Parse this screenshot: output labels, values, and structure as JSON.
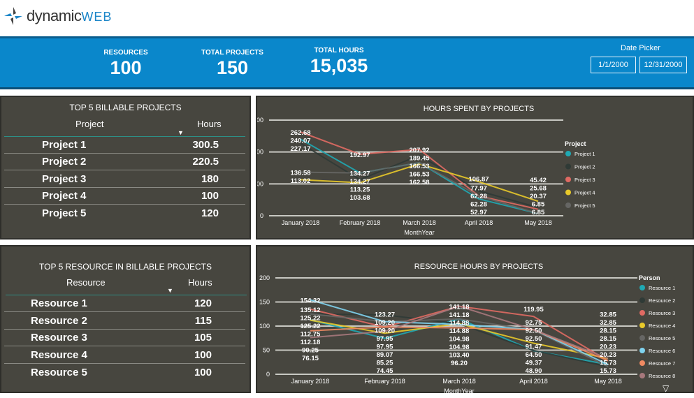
{
  "logo": {
    "text_main": "dynamic",
    "text_accent": "WEB"
  },
  "kpis": [
    {
      "label": "RESOURCES",
      "value": "100"
    },
    {
      "label": "TOTAL PROJECTS",
      "value": "150"
    },
    {
      "label": "TOTAL HOURS",
      "value": "15,035"
    }
  ],
  "date_picker": {
    "label": "Date Picker",
    "start": "1/1/2000",
    "end": "12/31/2000"
  },
  "projects_table": {
    "title": "TOP 5 BILLABLE PROJECTS",
    "col1": "Project",
    "col2": "Hours",
    "rows": [
      {
        "name": "Project 1",
        "hours": "300.5"
      },
      {
        "name": "Project 2",
        "hours": "220.5"
      },
      {
        "name": "Project 3",
        "hours": "180"
      },
      {
        "name": "Project 4",
        "hours": "100"
      },
      {
        "name": "Project 5",
        "hours": "120"
      }
    ]
  },
  "resources_table": {
    "title": "TOP 5 RESOURCE IN BILLABLE PROJECTS",
    "col1": "Resource",
    "col2": "Hours",
    "rows": [
      {
        "name": "Resource 1",
        "hours": "120"
      },
      {
        "name": "Resource 2",
        "hours": "115"
      },
      {
        "name": "Resource 3",
        "hours": "105"
      },
      {
        "name": "Resource 4",
        "hours": "100"
      },
      {
        "name": "Resource 5",
        "hours": "100"
      }
    ]
  },
  "chart_data": [
    {
      "type": "line",
      "title": "HOURS SPENT BY PROJECTS",
      "xlabel": "MonthYear",
      "ylabel": "",
      "ylim": [
        0,
        300
      ],
      "yticks": [
        0,
        100,
        200,
        300
      ],
      "grid": true,
      "legend_title": "Project",
      "legend_position": "right",
      "categories": [
        "January 2018",
        "February 2018",
        "March 2018",
        "April 2018",
        "May 2018"
      ],
      "series": [
        {
          "name": "Project 1",
          "color": "#1fa9b4",
          "values": [
            240.07,
            134.27,
            166.53,
            52.97,
            6.85
          ]
        },
        {
          "name": "Project 2",
          "color": "#2f3a36",
          "values": [
            227.17,
            113.25,
            189.45,
            77.97,
            25.68
          ]
        },
        {
          "name": "Project 3",
          "color": "#e06a63",
          "values": [
            262.68,
            192.97,
            207.92,
            62.28,
            20.37
          ]
        },
        {
          "name": "Project 4",
          "color": "#e8c92a",
          "values": [
            113.02,
            103.68,
            162.58,
            106.87,
            45.42
          ]
        },
        {
          "name": "Project 5",
          "color": "#666664",
          "values": [
            136.58,
            134.27,
            166.53,
            62.28,
            6.85
          ]
        }
      ]
    },
    {
      "type": "line",
      "title": "RESOURCE HOURS BY PROJECTS",
      "xlabel": "MonthYear",
      "ylabel": "",
      "ylim": [
        0,
        200
      ],
      "yticks": [
        0,
        50,
        100,
        150,
        200
      ],
      "grid": true,
      "legend_title": "Person",
      "legend_position": "right",
      "categories": [
        "January 2018",
        "February 2018",
        "March 2018",
        "April 2018",
        "May 2018"
      ],
      "series": [
        {
          "name": "Resource 1",
          "color": "#1fa9b4",
          "values": [
            112.75,
            74.45,
            114.88,
            48.9,
            20.23
          ]
        },
        {
          "name": "Resource 2",
          "color": "#2f3a36",
          "values": [
            125.22,
            123.27,
            104.98,
            49.37,
            15.73
          ]
        },
        {
          "name": "Resource 3",
          "color": "#e06a63",
          "values": [
            135.12,
            97.95,
            141.18,
            119.95,
            28.15
          ]
        },
        {
          "name": "Resource 4",
          "color": "#e8c92a",
          "values": [
            112.18,
            85.25,
            104.98,
            64.5,
            32.85
          ]
        },
        {
          "name": "Resource 5",
          "color": "#666664",
          "values": [
            125.22,
            109.2,
            114.88,
            91.47,
            15.73
          ]
        },
        {
          "name": "Resource 6",
          "color": "#7fd3ef",
          "values": [
            154.32,
            109.2,
            103.4,
            92.75,
            20.23
          ]
        },
        {
          "name": "Resource 7",
          "color": "#f08a62",
          "values": [
            90.25,
            97.95,
            96.2,
            92.5,
            28.15
          ]
        },
        {
          "name": "Resource 8",
          "color": "#a7787c",
          "values": [
            76.15,
            89.07,
            141.18,
            92.5,
            32.85
          ]
        }
      ]
    }
  ]
}
